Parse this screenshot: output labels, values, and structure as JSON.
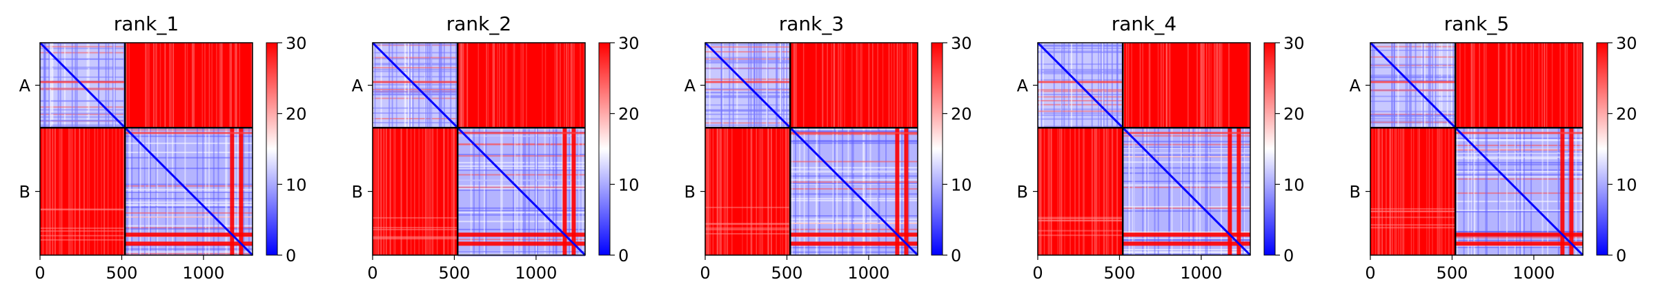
{
  "chart_data": [
    {
      "type": "heatmap",
      "title": "rank_1",
      "matrix_size": 1300,
      "chain_boundary": 520,
      "row_labels": [
        "A",
        "B"
      ],
      "xticks": [
        0,
        500,
        1000
      ],
      "colorbar": {
        "min": 0,
        "max": 30,
        "ticks": [
          0,
          10,
          20,
          30
        ],
        "colormap": "bwr"
      },
      "blocks": {
        "intra_chain": "low (blue, ~0-10) with red bands",
        "inter_chain": "high (red, ~30)"
      },
      "red_band_positions_b": [
        1175,
        1230
      ]
    },
    {
      "type": "heatmap",
      "title": "rank_2",
      "matrix_size": 1300,
      "chain_boundary": 520,
      "row_labels": [
        "A",
        "B"
      ],
      "xticks": [
        0,
        500,
        1000
      ],
      "colorbar": {
        "min": 0,
        "max": 30,
        "ticks": [
          0,
          10,
          20,
          30
        ],
        "colormap": "bwr"
      },
      "blocks": {
        "intra_chain": "low (blue, ~0-10) with red bands",
        "inter_chain": "high (red, ~30)"
      },
      "red_band_positions_b": [
        1175,
        1230
      ]
    },
    {
      "type": "heatmap",
      "title": "rank_3",
      "matrix_size": 1300,
      "chain_boundary": 520,
      "row_labels": [
        "A",
        "B"
      ],
      "xticks": [
        0,
        500,
        1000
      ],
      "colorbar": {
        "min": 0,
        "max": 30,
        "ticks": [
          0,
          10,
          20,
          30
        ],
        "colormap": "bwr"
      },
      "blocks": {
        "intra_chain": "low (blue, ~0-10) with red bands",
        "inter_chain": "high (red, ~30)"
      },
      "red_band_positions_b": [
        1175,
        1230
      ]
    },
    {
      "type": "heatmap",
      "title": "rank_4",
      "matrix_size": 1300,
      "chain_boundary": 520,
      "row_labels": [
        "A",
        "B"
      ],
      "xticks": [
        0,
        500,
        1000
      ],
      "colorbar": {
        "min": 0,
        "max": 30,
        "ticks": [
          0,
          10,
          20,
          30
        ],
        "colormap": "bwr"
      },
      "blocks": {
        "intra_chain": "low (blue, ~0-10) with red bands",
        "inter_chain": "high (red, ~30)"
      },
      "red_band_positions_b": [
        1175,
        1230
      ]
    },
    {
      "type": "heatmap",
      "title": "rank_5",
      "matrix_size": 1300,
      "chain_boundary": 520,
      "row_labels": [
        "A",
        "B"
      ],
      "xticks": [
        0,
        500,
        1000
      ],
      "colorbar": {
        "min": 0,
        "max": 30,
        "ticks": [
          0,
          10,
          20,
          30
        ],
        "colormap": "bwr"
      },
      "blocks": {
        "intra_chain": "low (blue, ~0-10) with red bands",
        "inter_chain": "high (red, ~30)"
      },
      "red_band_positions_b": [
        1175,
        1230
      ]
    }
  ],
  "colors": {
    "low": "#0000ff",
    "mid": "#ffffff",
    "high": "#ff0000",
    "frame": "#000000"
  }
}
